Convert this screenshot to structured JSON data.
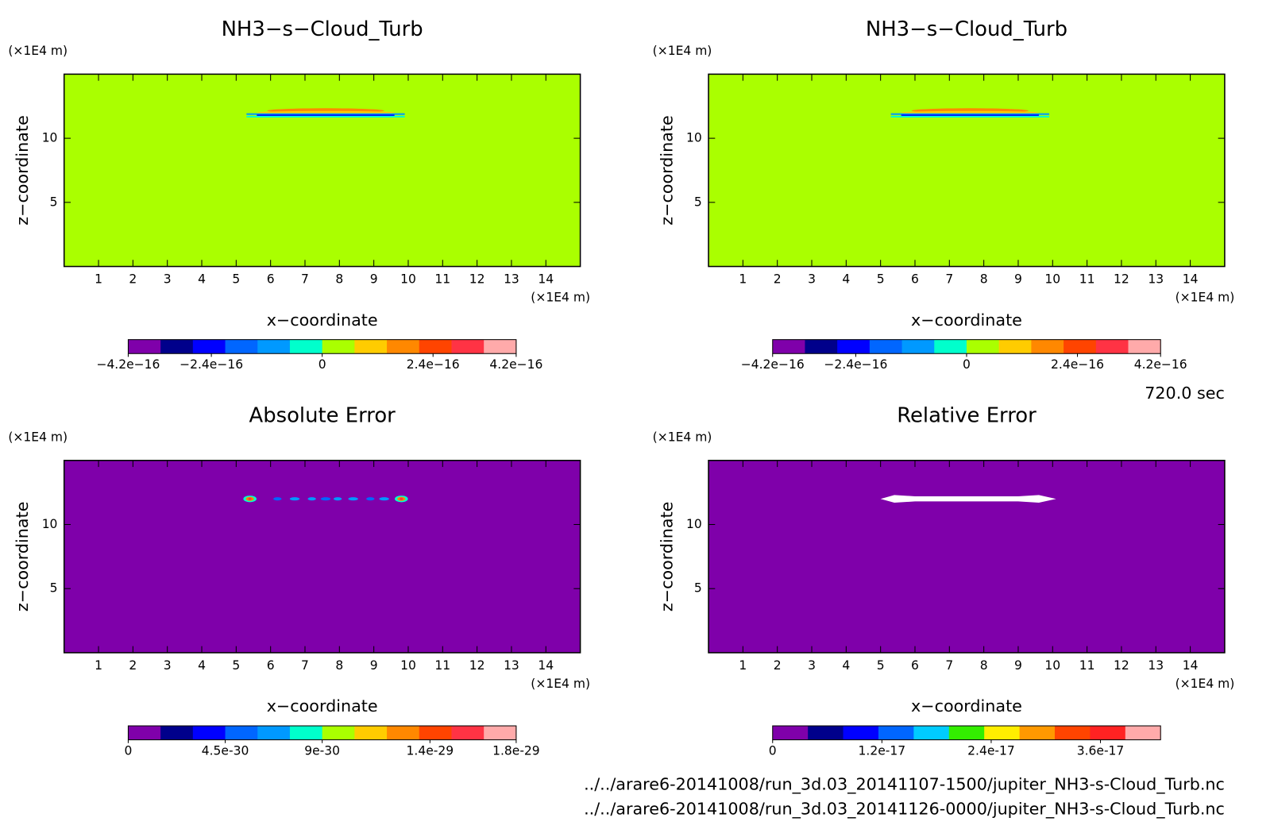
{
  "chart_data": [
    {
      "type": "contour",
      "title": "NH3−s−Cloud_Turb",
      "xlabel": "x−coordinate",
      "ylabel": "z−coordinate",
      "x_unit": "(×1E4 m)",
      "y_unit": "(×1E4 m)",
      "xlim": [
        0,
        15
      ],
      "ylim": [
        0,
        15
      ],
      "xticks": [
        1,
        2,
        3,
        4,
        5,
        6,
        7,
        8,
        9,
        10,
        11,
        12,
        13,
        14
      ],
      "yticks": [
        5,
        10
      ],
      "field_color": "#aaff00",
      "feature": "band",
      "colorbar": {
        "clim": [
          -4.2e-16,
          4.2e-16
        ],
        "colors": [
          "#7f00aa",
          "#00008b",
          "#0000ff",
          "#0066ff",
          "#0099ff",
          "#00ffcc",
          "#aaff00",
          "#ffcc00",
          "#ff8800",
          "#ff4400",
          "#ff3344",
          "#ffaaaa"
        ],
        "ticks": [
          {
            "value": -4.2e-16,
            "label": "−4.2e−16"
          },
          {
            "value": -2.4e-16,
            "label": "−2.4e−16"
          },
          0,
          {
            "value": 2.4e-16,
            "label": "2.4e−16"
          },
          {
            "value": 4.2e-16,
            "label": "4.2e−16"
          }
        ]
      }
    },
    {
      "type": "contour",
      "title": "NH3−s−Cloud_Turb",
      "xlabel": "x−coordinate",
      "ylabel": "z−coordinate",
      "x_unit": "(×1E4 m)",
      "y_unit": "(×1E4 m)",
      "xlim": [
        0,
        15
      ],
      "ylim": [
        0,
        15
      ],
      "xticks": [
        1,
        2,
        3,
        4,
        5,
        6,
        7,
        8,
        9,
        10,
        11,
        12,
        13,
        14
      ],
      "yticks": [
        5,
        10
      ],
      "field_color": "#aaff00",
      "feature": "band",
      "colorbar": {
        "clim": [
          -4.2e-16,
          4.2e-16
        ],
        "colors": [
          "#7f00aa",
          "#00008b",
          "#0000ff",
          "#0066ff",
          "#0099ff",
          "#00ffcc",
          "#aaff00",
          "#ffcc00",
          "#ff8800",
          "#ff4400",
          "#ff3344",
          "#ffaaaa"
        ],
        "ticks": [
          {
            "value": -4.2e-16,
            "label": "−4.2e−16"
          },
          {
            "value": -2.4e-16,
            "label": "−2.4e−16"
          },
          0,
          {
            "value": 2.4e-16,
            "label": "2.4e−16"
          },
          {
            "value": 4.2e-16,
            "label": "4.2e−16"
          }
        ]
      }
    },
    {
      "type": "contour",
      "title": "Absolute Error",
      "xlabel": "x−coordinate",
      "ylabel": "z−coordinate",
      "x_unit": "(×1E4 m)",
      "y_unit": "(×1E4 m)",
      "xlim": [
        0,
        15
      ],
      "ylim": [
        0,
        15
      ],
      "xticks": [
        1,
        2,
        3,
        4,
        5,
        6,
        7,
        8,
        9,
        10,
        11,
        12,
        13,
        14
      ],
      "yticks": [
        5,
        10
      ],
      "field_color": "#7f00aa",
      "feature": "blobs",
      "colorbar": {
        "clim": [
          0,
          1.8e-29
        ],
        "colors": [
          "#7f00aa",
          "#00008b",
          "#0000ff",
          "#0066ff",
          "#0099ff",
          "#00ffcc",
          "#aaff00",
          "#ffcc00",
          "#ff8800",
          "#ff4400",
          "#ff3344",
          "#ffaaaa"
        ],
        "ticks": [
          0,
          4.5e-30,
          9e-30,
          1.4e-29,
          1.8e-29
        ]
      }
    },
    {
      "type": "contour",
      "title": "Relative Error",
      "xlabel": "x−coordinate",
      "ylabel": "z−coordinate",
      "x_unit": "(×1E4 m)",
      "y_unit": "(×1E4 m)",
      "xlim": [
        0,
        15
      ],
      "ylim": [
        0,
        15
      ],
      "xticks": [
        1,
        2,
        3,
        4,
        5,
        6,
        7,
        8,
        9,
        10,
        11,
        12,
        13,
        14
      ],
      "yticks": [
        5,
        10
      ],
      "field_color": "#7f00aa",
      "feature": "white",
      "colorbar": {
        "clim": [
          0,
          4.26e-17
        ],
        "colors": [
          "#7f00aa",
          "#00008b",
          "#0000ff",
          "#0066ff",
          "#00ccff",
          "#33ee00",
          "#ffee00",
          "#ff9900",
          "#ff4400",
          "#ff2222",
          "#ffaaaa"
        ],
        "ticks": [
          0,
          1.2e-17,
          2.4e-17,
          3.6e-17
        ]
      }
    }
  ],
  "time_label": "720.0 sec",
  "files": [
    "../../arare6-20141008/run_3d.03_20141107-1500/jupiter_NH3-s-Cloud_Turb.nc",
    "../../arare6-20141008/run_3d.03_20141126-0000/jupiter_NH3-s-Cloud_Turb.nc"
  ]
}
